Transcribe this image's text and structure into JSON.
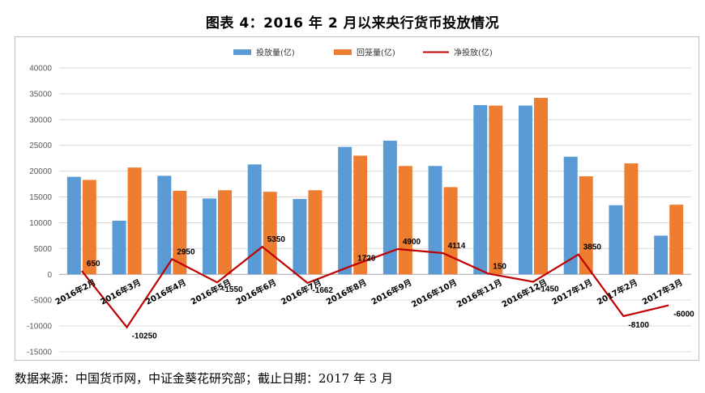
{
  "title": "图表 4：2016 年 2 月以来央行货币投放情况",
  "footer": "数据来源：中国货币网，中证金葵花研究部；截止日期：2017 年 3 月",
  "colors": {
    "series1": "#5b9bd5",
    "series2": "#ed7d31",
    "series3": "#c00000",
    "grid": "#d9d9d9",
    "axis": "#a6a6a6"
  },
  "chart_data": {
    "type": "bar",
    "title": "图表 4：2016 年 2 月以来央行货币投放情况",
    "categories": [
      "2016年2月",
      "2016年3月",
      "2016年4月",
      "2016年5月",
      "2016年6月",
      "2016年7月",
      "2016年8月",
      "2016年9月",
      "2016年10月",
      "2016年11月",
      "2016年12月",
      "2017年1月",
      "2017年2月",
      "2017年3月"
    ],
    "series": [
      {
        "name": "投放量(亿)",
        "kind": "bar",
        "values": [
          18900,
          10400,
          19100,
          14700,
          21300,
          14600,
          24700,
          25900,
          21000,
          32800,
          32700,
          22800,
          13400,
          7500
        ]
      },
      {
        "name": "回笼量(亿)",
        "kind": "bar",
        "values": [
          18300,
          20700,
          16200,
          16300,
          16000,
          16300,
          23000,
          21000,
          16900,
          32700,
          34200,
          19000,
          21500,
          13500
        ]
      },
      {
        "name": "净投放(亿)",
        "kind": "line",
        "values": [
          650,
          -10250,
          2950,
          -1550,
          5350,
          -1662,
          1720,
          4900,
          4114,
          150,
          -1450,
          3850,
          -8100,
          -6000
        ]
      }
    ],
    "data_labels": [
      "650",
      "-10250",
      "2950",
      "-1550",
      "5350",
      "-1662",
      "1720",
      "4900",
      "4114",
      "150",
      "-1450",
      "3850",
      "-8100",
      "-6000"
    ],
    "ylim": [
      -15000,
      40000
    ],
    "yticks": [
      -15000,
      -10000,
      -5000,
      0,
      5000,
      10000,
      15000,
      20000,
      25000,
      30000,
      35000,
      40000
    ],
    "xlabel": "",
    "ylabel": "",
    "grid": true,
    "legend": "top-center"
  }
}
